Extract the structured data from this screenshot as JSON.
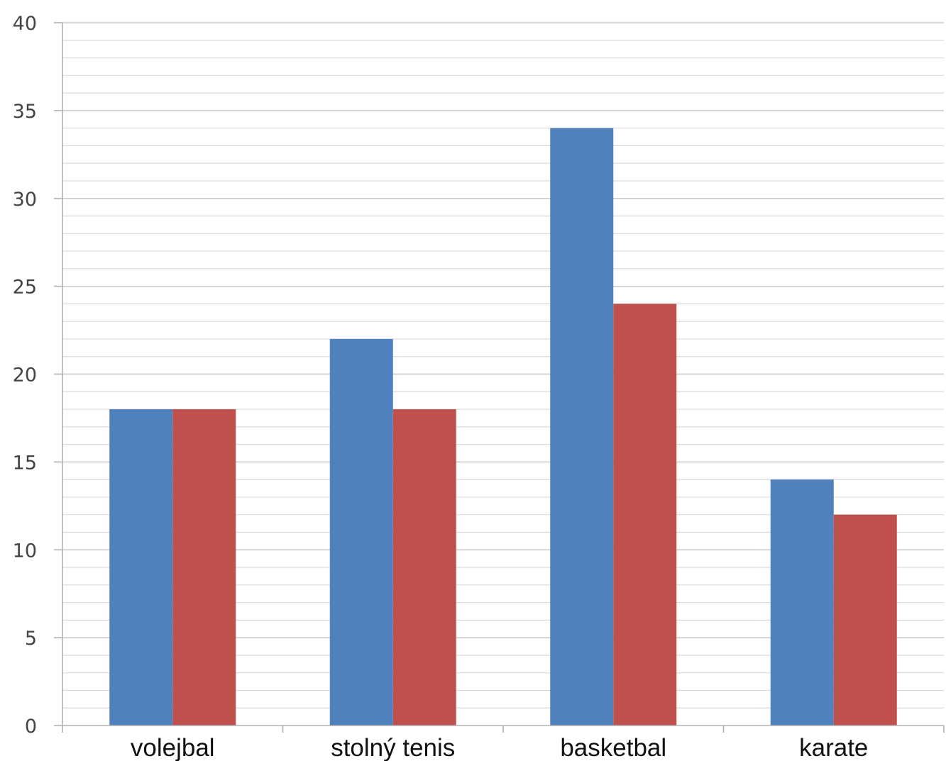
{
  "chart_data": {
    "type": "bar",
    "title": "",
    "xlabel": "",
    "ylabel": "",
    "categories": [
      "volejbal",
      "stolný tenis",
      "basketbal",
      "karate"
    ],
    "series": [
      {
        "values": [
          18,
          22,
          34,
          14
        ],
        "color": "#4F81BD"
      },
      {
        "values": [
          18,
          18,
          24,
          12
        ],
        "color": "#C0504D"
      }
    ],
    "ylim": [
      0,
      40
    ],
    "y_major_ticks": [
      0,
      5,
      10,
      15,
      20,
      25,
      30,
      35,
      40
    ],
    "y_minor_step": 1,
    "grid": true,
    "legend": "none"
  }
}
